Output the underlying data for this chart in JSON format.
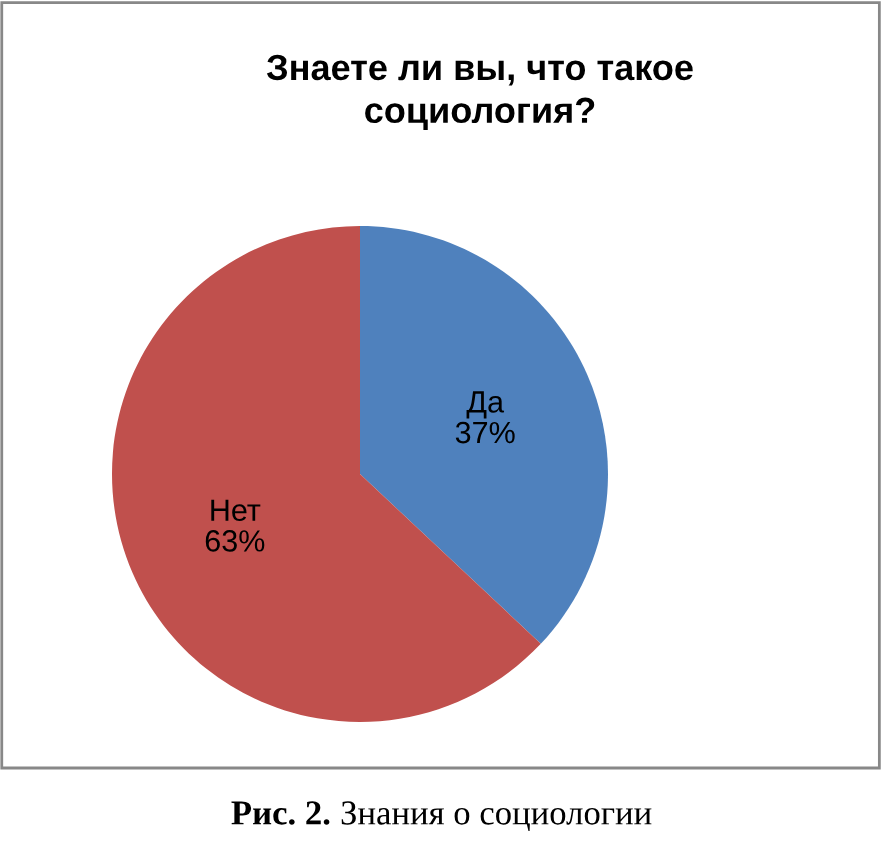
{
  "chart_data": {
    "type": "pie",
    "title": "Знаете ли вы, что такое\nсоциология?",
    "categories": [
      "Да",
      "Нет"
    ],
    "values": [
      37,
      63
    ],
    "value_labels": [
      "37%",
      "63%"
    ],
    "colors": [
      "#4f81bd",
      "#c0504d"
    ],
    "legend": false,
    "annotations": [
      "Рис. 2.",
      "Знания о социологии"
    ]
  }
}
